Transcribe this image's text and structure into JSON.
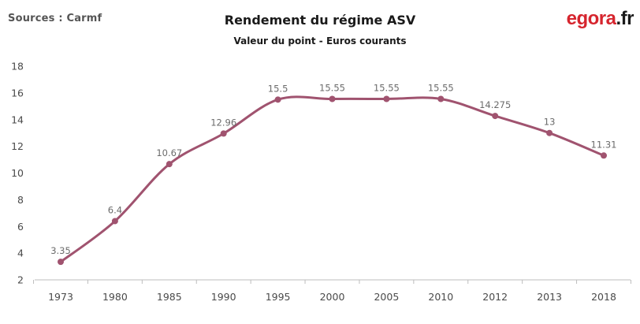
{
  "header": {
    "source": "Sources : Carmf",
    "logo_main": "egora",
    "logo_ext": ".fr"
  },
  "colors": {
    "line": "#a0536f",
    "axis": "#bdbdbd",
    "logo_red": "#d6252e"
  },
  "chart_data": {
    "type": "line",
    "title": "Rendement du régime ASV",
    "subtitle": "Valeur du point - Euros courants",
    "xlabel": "",
    "ylabel": "",
    "categories": [
      "1973",
      "1980",
      "1985",
      "1990",
      "1995",
      "2000",
      "2005",
      "2010",
      "2012",
      "2013",
      "2018"
    ],
    "values": [
      3.35,
      6.4,
      10.67,
      12.96,
      15.5,
      15.55,
      15.55,
      15.55,
      14.275,
      13,
      11.31
    ],
    "data_labels": [
      "3.35",
      "6.4",
      "10.67",
      "12.96",
      "15.5",
      "15.55",
      "15.55",
      "15.55",
      "14.275",
      "13",
      "11.31"
    ],
    "ylim": [
      2,
      18
    ],
    "yticks": [
      2,
      4,
      6,
      8,
      10,
      12,
      14,
      16,
      18
    ],
    "grid": false,
    "smooth": true
  }
}
